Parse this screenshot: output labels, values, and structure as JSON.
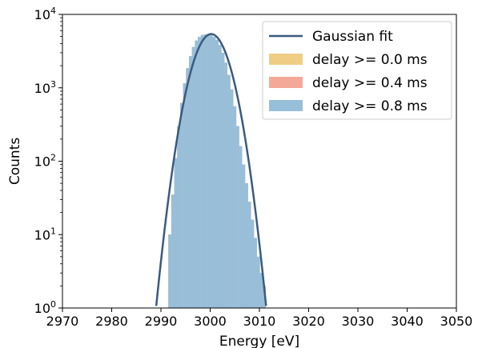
{
  "chart_data": {
    "type": "histogram",
    "xlabel": "Energy [eV]",
    "ylabel": "Counts",
    "xlim": [
      2970,
      3050
    ],
    "ylim": [
      1,
      10000
    ],
    "yscale": "log",
    "grid": false,
    "legend_position": "top-right",
    "x_ticks": [
      "2970",
      "2980",
      "2990",
      "3000",
      "3010",
      "3020",
      "3030",
      "3040",
      "3050"
    ],
    "y_ticks": [
      {
        "base": "10",
        "exp": "0"
      },
      {
        "base": "10",
        "exp": "1"
      },
      {
        "base": "10",
        "exp": "2"
      },
      {
        "base": "10",
        "exp": "3"
      },
      {
        "base": "10",
        "exp": "4"
      }
    ],
    "fit": {
      "name": "Gaussian fit",
      "color": "#3b5a80",
      "amplitude": 5400,
      "mean": 3000.2,
      "sigma": 2.7
    },
    "series": [
      {
        "name": "delay >= 0.0 ms",
        "color": "#f0cd85",
        "bins": [
          [
            2991.8,
            10
          ],
          [
            2992.4,
            35
          ],
          [
            2993.0,
            110
          ],
          [
            2993.6,
            300
          ],
          [
            2994.2,
            620
          ],
          [
            2994.8,
            1150
          ],
          [
            2995.4,
            1850
          ],
          [
            2996.0,
            2700
          ],
          [
            2996.6,
            3600
          ],
          [
            2997.2,
            4400
          ],
          [
            2997.8,
            4950
          ],
          [
            2998.4,
            5250
          ],
          [
            2999.0,
            5350
          ],
          [
            2999.6,
            5300
          ],
          [
            3000.2,
            5200
          ],
          [
            3000.8,
            4950
          ],
          [
            3001.4,
            4500
          ],
          [
            3002.0,
            3850
          ],
          [
            3002.6,
            3000
          ],
          [
            3003.2,
            2200
          ],
          [
            3003.8,
            1500
          ],
          [
            3004.4,
            950
          ],
          [
            3005.0,
            560
          ],
          [
            3005.6,
            300
          ],
          [
            3006.2,
            160
          ],
          [
            3006.8,
            90
          ],
          [
            3007.4,
            50
          ],
          [
            3008.0,
            28
          ],
          [
            3008.6,
            16
          ],
          [
            3009.2,
            9
          ],
          [
            3009.8,
            5
          ],
          [
            3010.4,
            3
          ],
          [
            3011.0,
            2
          ]
        ]
      },
      {
        "name": "delay >= 0.4 ms",
        "color": "#f4a898",
        "bins": [
          [
            2991.8,
            10
          ],
          [
            2992.4,
            35
          ],
          [
            2993.0,
            110
          ],
          [
            2993.6,
            300
          ],
          [
            2994.2,
            620
          ],
          [
            2994.8,
            1150
          ],
          [
            2995.4,
            1850
          ],
          [
            2996.0,
            2700
          ],
          [
            2996.6,
            3600
          ],
          [
            2997.2,
            4400
          ],
          [
            2997.8,
            4950
          ],
          [
            2998.4,
            5250
          ],
          [
            2999.0,
            5350
          ],
          [
            2999.6,
            5300
          ],
          [
            3000.2,
            5200
          ],
          [
            3000.8,
            4950
          ],
          [
            3001.4,
            4500
          ],
          [
            3002.0,
            3850
          ],
          [
            3002.6,
            3000
          ],
          [
            3003.2,
            2200
          ],
          [
            3003.8,
            1500
          ],
          [
            3004.4,
            950
          ],
          [
            3005.0,
            560
          ],
          [
            3005.6,
            300
          ],
          [
            3006.2,
            160
          ],
          [
            3006.8,
            90
          ],
          [
            3007.4,
            50
          ],
          [
            3008.0,
            28
          ],
          [
            3008.6,
            16
          ],
          [
            3009.2,
            9
          ],
          [
            3009.8,
            5
          ],
          [
            3010.4,
            3
          ],
          [
            3011.0,
            2
          ]
        ]
      },
      {
        "name": "delay >= 0.8 ms",
        "color": "#97bfda",
        "bins": [
          [
            2991.8,
            10
          ],
          [
            2992.4,
            35
          ],
          [
            2993.0,
            110
          ],
          [
            2993.6,
            300
          ],
          [
            2994.2,
            620
          ],
          [
            2994.8,
            1150
          ],
          [
            2995.4,
            1850
          ],
          [
            2996.0,
            2700
          ],
          [
            2996.6,
            3600
          ],
          [
            2997.2,
            4400
          ],
          [
            2997.8,
            4950
          ],
          [
            2998.4,
            5250
          ],
          [
            2999.0,
            5350
          ],
          [
            2999.6,
            5300
          ],
          [
            3000.2,
            5200
          ],
          [
            3000.8,
            4950
          ],
          [
            3001.4,
            4500
          ],
          [
            3002.0,
            3850
          ],
          [
            3002.6,
            3000
          ],
          [
            3003.2,
            2200
          ],
          [
            3003.8,
            1500
          ],
          [
            3004.4,
            950
          ],
          [
            3005.0,
            560
          ],
          [
            3005.6,
            300
          ],
          [
            3006.2,
            160
          ],
          [
            3006.8,
            90
          ],
          [
            3007.4,
            50
          ],
          [
            3008.0,
            28
          ],
          [
            3008.6,
            16
          ],
          [
            3009.2,
            9
          ],
          [
            3009.8,
            5
          ],
          [
            3010.4,
            3
          ],
          [
            3011.0,
            2
          ]
        ]
      }
    ]
  }
}
